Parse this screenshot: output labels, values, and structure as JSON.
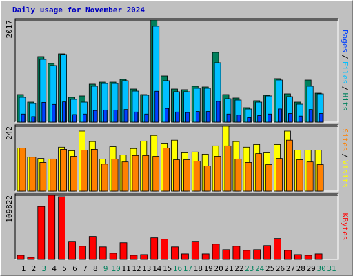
{
  "chart_data": [
    {
      "type": "bar",
      "title": "Daily usage for November 2024",
      "categories": [
        "1",
        "2",
        "3",
        "4",
        "5",
        "6",
        "7",
        "8",
        "9",
        "10",
        "11",
        "12",
        "13",
        "14",
        "15",
        "16",
        "17",
        "18",
        "19",
        "20",
        "21",
        "22",
        "23",
        "24",
        "25",
        "26",
        "27",
        "28",
        "29",
        "30",
        "31"
      ],
      "category_colors": [
        "#000000",
        "#000000",
        "#00805c",
        "#000000",
        "#000000",
        "#000000",
        "#000000",
        "#000000",
        "#00805c",
        "#00805c",
        "#000000",
        "#000000",
        "#000000",
        "#000000",
        "#000000",
        "#00805c",
        "#00805c",
        "#000000",
        "#000000",
        "#000000",
        "#000000",
        "#000000",
        "#00805c",
        "#00805c",
        "#000000",
        "#000000",
        "#000000",
        "#000000",
        "#000000",
        "#00805c",
        "#00805c"
      ],
      "legend_separator": "/",
      "series": [
        {
          "name": "Pages",
          "color": "#0040ff",
          "values": [
            160,
            110,
            390,
            350,
            400,
            150,
            160,
            230,
            240,
            240,
            250,
            200,
            160,
            610,
            270,
            200,
            190,
            210,
            210,
            410,
            160,
            140,
            90,
            130,
            160,
            260,
            170,
            120,
            250,
            170,
            0
          ]
        },
        {
          "name": "Files",
          "color": "#00c0ff",
          "values": [
            491,
            368,
            1240,
            1118,
            1336,
            450,
            395,
            709,
            763,
            763,
            818,
            613,
            532,
            1895,
            818,
            600,
            600,
            668,
            668,
            1172,
            463,
            436,
            259,
            395,
            518,
            832,
            504,
            354,
            709,
            559,
            0
          ]
        },
        {
          "name": "Hits",
          "color": "#00805c",
          "values": [
            545,
            395,
            1295,
            1159,
            1349,
            491,
            518,
            750,
            790,
            790,
            845,
            654,
            545,
            2017,
            913,
            654,
            641,
            709,
            695,
            1377,
            545,
            477,
            286,
            423,
            532,
            859,
            559,
            395,
            831,
            572,
            0
          ]
        }
      ],
      "ylim": [
        0,
        2017
      ],
      "yticks": [
        2017
      ]
    },
    {
      "type": "bar",
      "legend_separator": "/",
      "series": [
        {
          "name": "Sites",
          "color": "#ff8000",
          "values": [
            161,
            127,
            107,
            120,
            156,
            130,
            153,
            156,
            101,
            120,
            109,
            133,
            133,
            130,
            161,
            117,
            117,
            112,
            94,
            130,
            169,
            120,
            107,
            140,
            99,
            122,
            190,
            117,
            109,
            99,
            0
          ]
        },
        {
          "name": "Visits",
          "color": "#ffff00",
          "values": [
            161,
            127,
            122,
            120,
            164,
            151,
            224,
            185,
            120,
            166,
            135,
            159,
            187,
            208,
            179,
            190,
            143,
            146,
            138,
            169,
            242,
            185,
            164,
            174,
            143,
            174,
            224,
            153,
            153,
            153,
            0
          ]
        }
      ],
      "ylim": [
        0,
        242
      ],
      "yticks": [
        242
      ]
    },
    {
      "type": "bar",
      "series": [
        {
          "name": "KBytes",
          "color": "#ff0000",
          "values": [
            7164,
            3582,
            90744,
            109822,
            107460,
            31044,
            22686,
            39402,
            21492,
            10746,
            28656,
            7164,
            8358,
            37014,
            34626,
            21492,
            9552,
            31044,
            9552,
            26268,
            16716,
            22686,
            15522,
            16716,
            23880,
            35820,
            15522,
            8358,
            7164,
            9552,
            0
          ]
        }
      ],
      "ylim": [
        0,
        109822
      ],
      "yticks": [
        109822
      ]
    }
  ]
}
